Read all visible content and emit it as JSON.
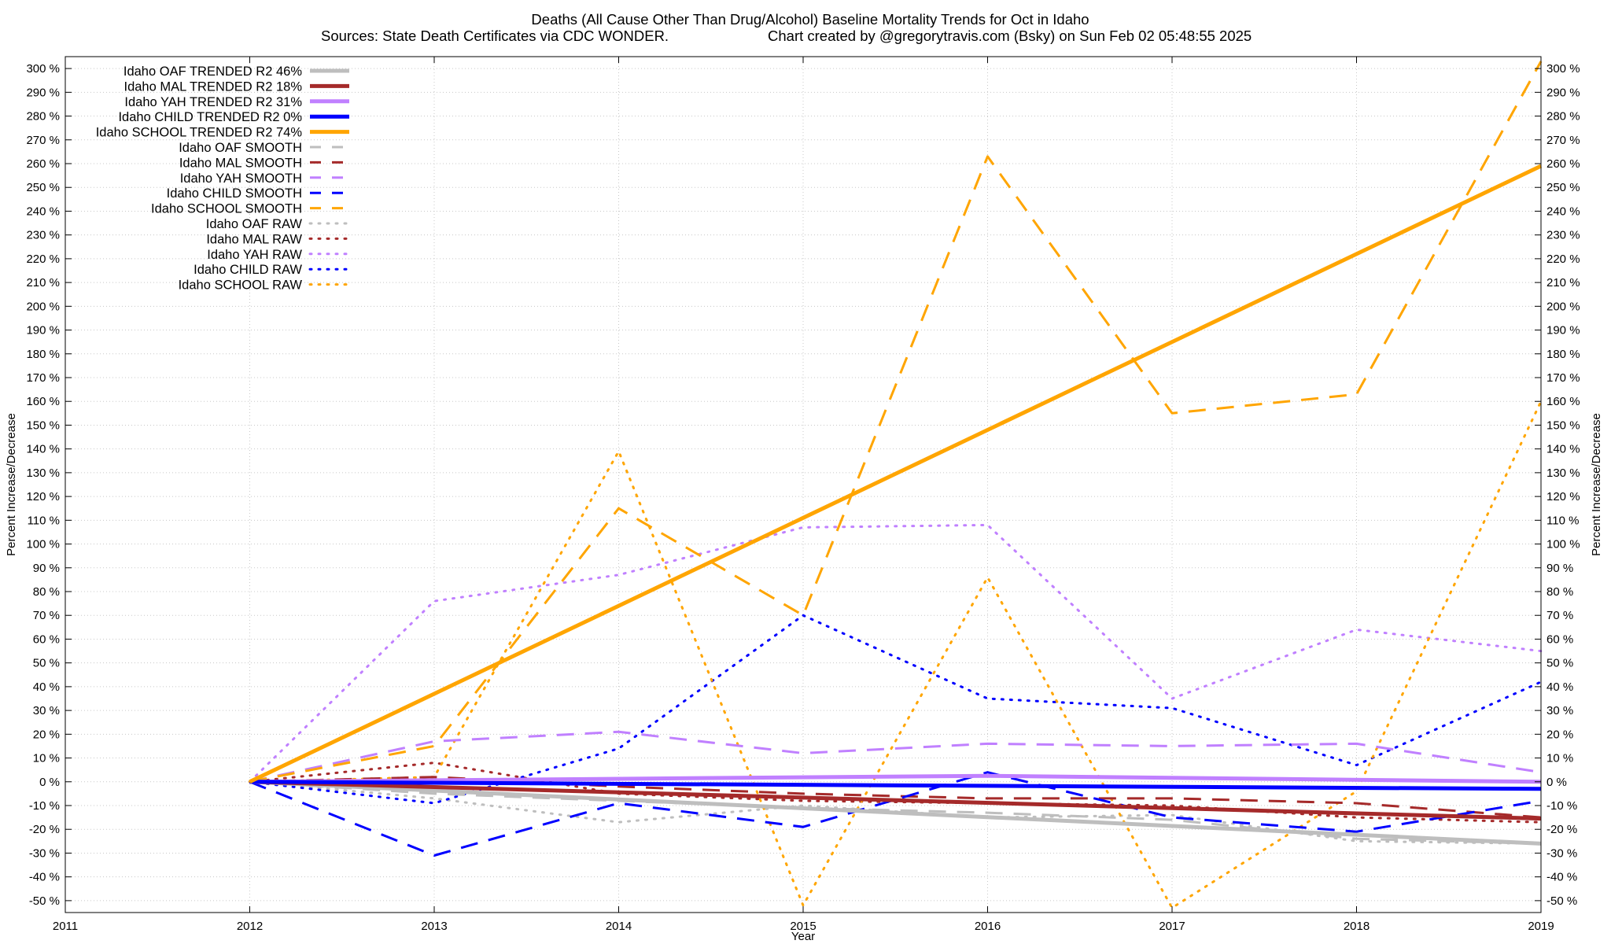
{
  "chart_data": {
    "type": "line",
    "title": "Deaths (All Cause Other Than Drug/Alcohol)  Baseline Mortality Trends for Oct in Idaho",
    "subtitle_left": "Sources: State Death Certificates via CDC WONDER.",
    "subtitle_right": "Chart created by @gregorytravis.com (Bsky) on Sun Feb 02 05:48:55 2025",
    "xlabel": "Year",
    "ylabel_left": "Percent Increase/Decrease",
    "ylabel_right": "Percent Increase/Decrease",
    "xlim": [
      2011,
      2019
    ],
    "ylim": [
      -55,
      305
    ],
    "x_ticks": [
      2011,
      2012,
      2013,
      2014,
      2015,
      2016,
      2017,
      2018,
      2019
    ],
    "y_ticks": [
      -50,
      -40,
      -30,
      -20,
      -10,
      0,
      10,
      20,
      30,
      40,
      50,
      60,
      70,
      80,
      90,
      100,
      110,
      120,
      130,
      140,
      150,
      160,
      170,
      180,
      190,
      200,
      210,
      220,
      230,
      240,
      250,
      260,
      270,
      280,
      290,
      300
    ],
    "y_tick_suffix": " %",
    "grid": true,
    "legend_position": "top-left",
    "series": [
      {
        "name": "Idaho OAF TRENDED R2  46%",
        "color": "#bebebe",
        "style": "solid",
        "x": [
          2012,
          2019
        ],
        "values": [
          0,
          -26
        ]
      },
      {
        "name": "Idaho MAL TRENDED R2  18%",
        "color": "#a52a2a",
        "style": "solid",
        "x": [
          2012,
          2019
        ],
        "values": [
          0,
          -15.5
        ]
      },
      {
        "name": "Idaho YAH TRENDED R2  31%",
        "color": "#c080ff",
        "style": "solid",
        "x": [
          2012,
          2016,
          2019
        ],
        "values": [
          0,
          2.5,
          0
        ]
      },
      {
        "name": "Idaho CHILD TRENDED R2  0%",
        "color": "#0000ff",
        "style": "solid",
        "x": [
          2012,
          2019
        ],
        "values": [
          0,
          -3
        ]
      },
      {
        "name": "Idaho SCHOOL TRENDED R2  74%",
        "color": "#ffa500",
        "style": "solid",
        "x": [
          2012,
          2019
        ],
        "values": [
          0,
          259
        ]
      },
      {
        "name": "Idaho OAF SMOOTH",
        "color": "#bebebe",
        "style": "dashed",
        "x": [
          2012,
          2013,
          2014,
          2015,
          2016,
          2017,
          2018,
          2019
        ],
        "values": [
          0,
          -5,
          -8,
          -11,
          -13,
          -16,
          -24,
          -26
        ]
      },
      {
        "name": "Idaho MAL SMOOTH",
        "color": "#a52a2a",
        "style": "dashed",
        "x": [
          2012,
          2013,
          2014,
          2015,
          2016,
          2017,
          2018,
          2019
        ],
        "values": [
          0,
          2,
          -2,
          -5,
          -7,
          -7,
          -9,
          -15
        ]
      },
      {
        "name": "Idaho YAH SMOOTH",
        "color": "#c080ff",
        "style": "dashed",
        "x": [
          2012,
          2013,
          2014,
          2015,
          2016,
          2017,
          2018,
          2019
        ],
        "values": [
          0,
          17,
          21,
          12,
          16,
          15,
          16,
          4
        ]
      },
      {
        "name": "Idaho CHILD SMOOTH",
        "color": "#0000ff",
        "style": "dashed",
        "x": [
          2012,
          2013,
          2014,
          2015,
          2016,
          2017,
          2018,
          2019
        ],
        "values": [
          0,
          -31,
          -9,
          -19,
          4,
          -15,
          -21,
          -8
        ]
      },
      {
        "name": "Idaho SCHOOL SMOOTH",
        "color": "#ffa500",
        "style": "dashed",
        "x": [
          2012,
          2013,
          2014,
          2015,
          2016,
          2017,
          2018,
          2019
        ],
        "values": [
          0,
          15,
          115,
          70,
          263,
          155,
          163,
          303
        ]
      },
      {
        "name": "Idaho OAF RAW",
        "color": "#bebebe",
        "style": "dotted",
        "x": [
          2012,
          2013,
          2014,
          2015,
          2016,
          2017,
          2018,
          2019
        ],
        "values": [
          0,
          -7,
          -17,
          -10,
          -15,
          -14,
          -25,
          -26
        ]
      },
      {
        "name": "Idaho MAL RAW",
        "color": "#a52a2a",
        "style": "dotted",
        "x": [
          2012,
          2013,
          2014,
          2015,
          2016,
          2017,
          2018,
          2019
        ],
        "values": [
          0,
          8,
          -5,
          -8,
          -9,
          -10,
          -15,
          -17
        ]
      },
      {
        "name": "Idaho YAH RAW",
        "color": "#c080ff",
        "style": "dotted",
        "x": [
          2012,
          2013,
          2014,
          2015,
          2016,
          2017,
          2018,
          2019
        ],
        "values": [
          0,
          76,
          87,
          107,
          108,
          35,
          64,
          55
        ]
      },
      {
        "name": "Idaho CHILD RAW",
        "color": "#0000ff",
        "style": "dotted",
        "x": [
          2012,
          2013,
          2014,
          2015,
          2016,
          2017,
          2018,
          2019
        ],
        "values": [
          0,
          -9,
          14,
          70,
          35,
          31,
          7,
          42
        ]
      },
      {
        "name": "Idaho SCHOOL RAW",
        "color": "#ffa500",
        "style": "dotted",
        "x": [
          2012,
          2013,
          2014,
          2015,
          2016,
          2017,
          2018,
          2019
        ],
        "values": [
          0,
          2,
          139,
          -52,
          86,
          -53,
          -4,
          160
        ]
      }
    ]
  }
}
